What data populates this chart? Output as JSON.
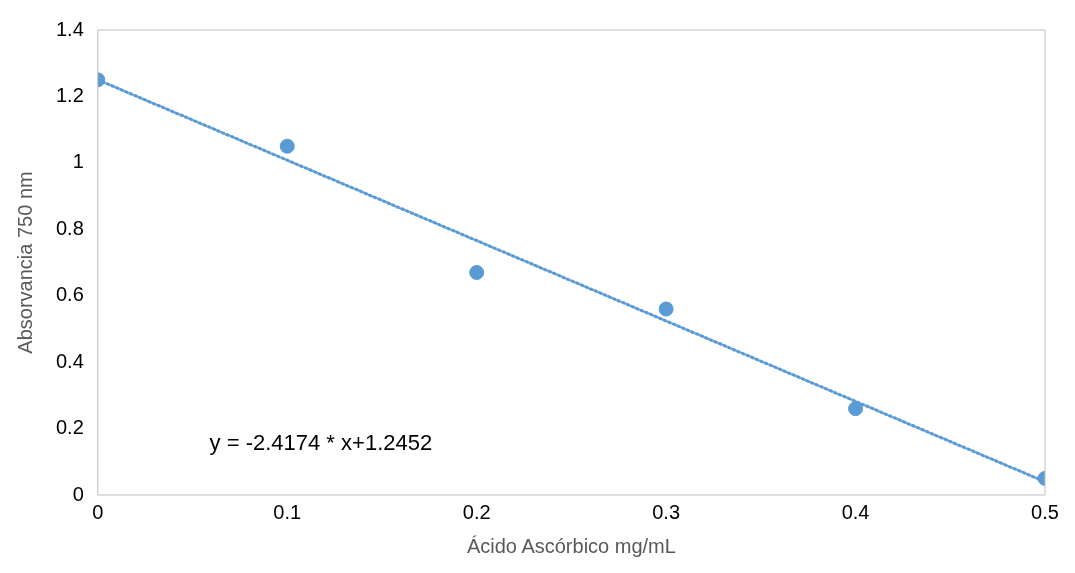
{
  "chart_data": {
    "type": "scatter",
    "xlabel": "Ácido Ascórbico mg/mL",
    "ylabel": "Absorvancia 750 nm",
    "x": [
      0,
      0.1,
      0.2,
      0.3,
      0.4,
      0.5
    ],
    "xlim": [
      0,
      0.5
    ],
    "xticks": [
      0,
      0.1,
      0.2,
      0.3,
      0.4,
      0.5
    ],
    "ylim": [
      0,
      1.4
    ],
    "yticks": [
      0,
      0.2,
      0.4,
      0.6,
      0.8,
      1,
      1.2,
      1.4
    ],
    "grid": false,
    "legend": false,
    "marker": "circle",
    "series": [
      {
        "color": "#5b9bd5",
        "values": [
          1.25,
          1.05,
          0.67,
          0.56,
          0.26,
          0.05
        ]
      },
      {
        "type": "line",
        "color": "#5b9bd5",
        "line_style": "dotted",
        "marker": "none",
        "x": [
          0,
          0.5
        ],
        "values": [
          1.25,
          0.04
        ]
      }
    ],
    "annotations": [
      "y = -2.4174 * x+1.2452"
    ]
  }
}
